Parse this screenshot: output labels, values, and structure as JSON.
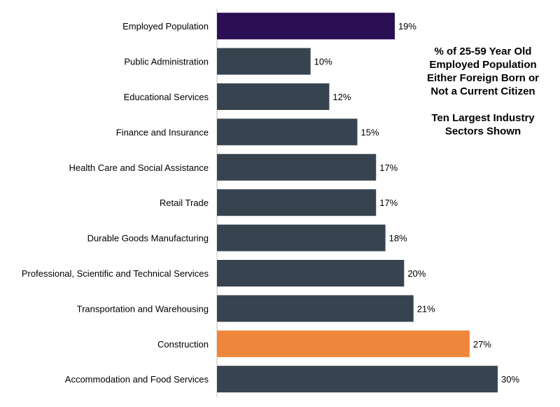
{
  "note": {
    "line1": "% of 25-59 Year Old",
    "line2": "Employed Population",
    "line3": "Either Foreign Born or",
    "line4": "Not a Current Citizen",
    "line5": "Ten Largest Industry",
    "line6": "Sectors Shown"
  },
  "chart_data": {
    "type": "bar",
    "orientation": "horizontal",
    "categories": [
      "Employed Population",
      "Public Administration",
      "Educational Services",
      "Finance and Insurance",
      "Health Care and Social Assistance",
      "Retail Trade",
      "Durable Goods Manufacturing",
      "Professional, Scientific and Technical Services",
      "Transportation and Warehousing",
      "Construction",
      "Accommodation and Food Services"
    ],
    "values": [
      19,
      10,
      12,
      15,
      17,
      17,
      18,
      20,
      21,
      27,
      30
    ],
    "labels": [
      "19%",
      "10%",
      "12%",
      "15%",
      "17%",
      "17%",
      "18%",
      "20%",
      "21%",
      "27%",
      "30%"
    ],
    "colors": [
      "#2a0f55",
      "#37444f",
      "#37444f",
      "#37444f",
      "#37444f",
      "#37444f",
      "#37444f",
      "#37444f",
      "#37444f",
      "#ee873b",
      "#37444f"
    ],
    "xlim": [
      0,
      30
    ],
    "grid": false,
    "legend": "none"
  }
}
